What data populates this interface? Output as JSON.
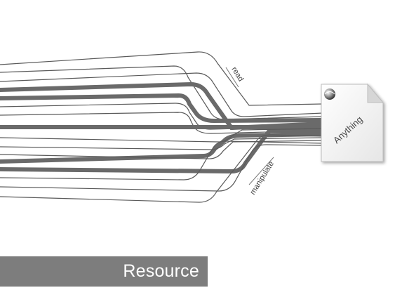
{
  "diagram": {
    "label_read": "read",
    "label_manipulate": "manipulate",
    "document_label": "Anything",
    "banner_label": "Resource",
    "colors": {
      "thick_line": "#6a6a6a",
      "thin_line": "#555555",
      "banner": "#7d7d7d",
      "banner_text": "#ffffff"
    },
    "icons": {
      "document": "document-icon",
      "globe": "globe-icon"
    }
  }
}
